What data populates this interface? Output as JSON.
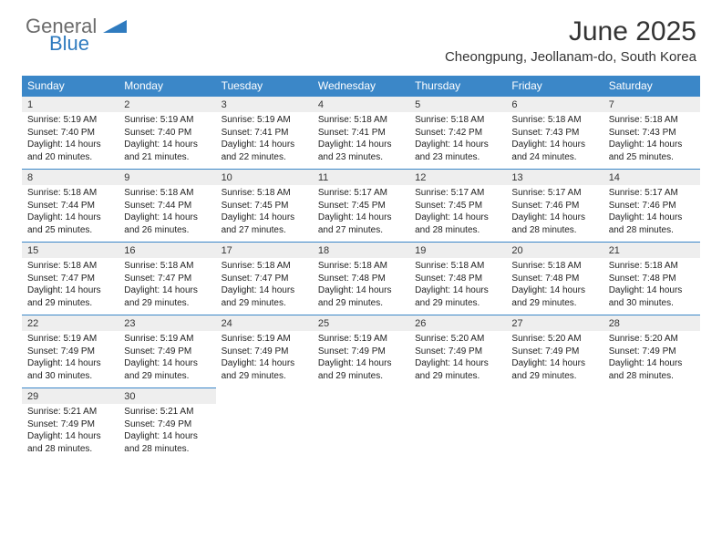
{
  "brand": {
    "word1": "General",
    "word2": "Blue"
  },
  "title": "June 2025",
  "location": "Cheongpung, Jeollanam-do, South Korea",
  "colors": {
    "headerBg": "#3b87c8",
    "headerText": "#ffffff",
    "dateRowBg": "#eeeeee",
    "borderColor": "#3b87c8",
    "bodyText": "#222222",
    "logoGray": "#6b6b6b",
    "logoBlue": "#2f7bbf"
  },
  "dayNames": [
    "Sunday",
    "Monday",
    "Tuesday",
    "Wednesday",
    "Thursday",
    "Friday",
    "Saturday"
  ],
  "weeks": [
    [
      {
        "date": "1",
        "sunrise": "Sunrise: 5:19 AM",
        "sunset": "Sunset: 7:40 PM",
        "daylight": "Daylight: 14 hours and 20 minutes."
      },
      {
        "date": "2",
        "sunrise": "Sunrise: 5:19 AM",
        "sunset": "Sunset: 7:40 PM",
        "daylight": "Daylight: 14 hours and 21 minutes."
      },
      {
        "date": "3",
        "sunrise": "Sunrise: 5:19 AM",
        "sunset": "Sunset: 7:41 PM",
        "daylight": "Daylight: 14 hours and 22 minutes."
      },
      {
        "date": "4",
        "sunrise": "Sunrise: 5:18 AM",
        "sunset": "Sunset: 7:41 PM",
        "daylight": "Daylight: 14 hours and 23 minutes."
      },
      {
        "date": "5",
        "sunrise": "Sunrise: 5:18 AM",
        "sunset": "Sunset: 7:42 PM",
        "daylight": "Daylight: 14 hours and 23 minutes."
      },
      {
        "date": "6",
        "sunrise": "Sunrise: 5:18 AM",
        "sunset": "Sunset: 7:43 PM",
        "daylight": "Daylight: 14 hours and 24 minutes."
      },
      {
        "date": "7",
        "sunrise": "Sunrise: 5:18 AM",
        "sunset": "Sunset: 7:43 PM",
        "daylight": "Daylight: 14 hours and 25 minutes."
      }
    ],
    [
      {
        "date": "8",
        "sunrise": "Sunrise: 5:18 AM",
        "sunset": "Sunset: 7:44 PM",
        "daylight": "Daylight: 14 hours and 25 minutes."
      },
      {
        "date": "9",
        "sunrise": "Sunrise: 5:18 AM",
        "sunset": "Sunset: 7:44 PM",
        "daylight": "Daylight: 14 hours and 26 minutes."
      },
      {
        "date": "10",
        "sunrise": "Sunrise: 5:18 AM",
        "sunset": "Sunset: 7:45 PM",
        "daylight": "Daylight: 14 hours and 27 minutes."
      },
      {
        "date": "11",
        "sunrise": "Sunrise: 5:17 AM",
        "sunset": "Sunset: 7:45 PM",
        "daylight": "Daylight: 14 hours and 27 minutes."
      },
      {
        "date": "12",
        "sunrise": "Sunrise: 5:17 AM",
        "sunset": "Sunset: 7:45 PM",
        "daylight": "Daylight: 14 hours and 28 minutes."
      },
      {
        "date": "13",
        "sunrise": "Sunrise: 5:17 AM",
        "sunset": "Sunset: 7:46 PM",
        "daylight": "Daylight: 14 hours and 28 minutes."
      },
      {
        "date": "14",
        "sunrise": "Sunrise: 5:17 AM",
        "sunset": "Sunset: 7:46 PM",
        "daylight": "Daylight: 14 hours and 28 minutes."
      }
    ],
    [
      {
        "date": "15",
        "sunrise": "Sunrise: 5:18 AM",
        "sunset": "Sunset: 7:47 PM",
        "daylight": "Daylight: 14 hours and 29 minutes."
      },
      {
        "date": "16",
        "sunrise": "Sunrise: 5:18 AM",
        "sunset": "Sunset: 7:47 PM",
        "daylight": "Daylight: 14 hours and 29 minutes."
      },
      {
        "date": "17",
        "sunrise": "Sunrise: 5:18 AM",
        "sunset": "Sunset: 7:47 PM",
        "daylight": "Daylight: 14 hours and 29 minutes."
      },
      {
        "date": "18",
        "sunrise": "Sunrise: 5:18 AM",
        "sunset": "Sunset: 7:48 PM",
        "daylight": "Daylight: 14 hours and 29 minutes."
      },
      {
        "date": "19",
        "sunrise": "Sunrise: 5:18 AM",
        "sunset": "Sunset: 7:48 PM",
        "daylight": "Daylight: 14 hours and 29 minutes."
      },
      {
        "date": "20",
        "sunrise": "Sunrise: 5:18 AM",
        "sunset": "Sunset: 7:48 PM",
        "daylight": "Daylight: 14 hours and 29 minutes."
      },
      {
        "date": "21",
        "sunrise": "Sunrise: 5:18 AM",
        "sunset": "Sunset: 7:48 PM",
        "daylight": "Daylight: 14 hours and 30 minutes."
      }
    ],
    [
      {
        "date": "22",
        "sunrise": "Sunrise: 5:19 AM",
        "sunset": "Sunset: 7:49 PM",
        "daylight": "Daylight: 14 hours and 30 minutes."
      },
      {
        "date": "23",
        "sunrise": "Sunrise: 5:19 AM",
        "sunset": "Sunset: 7:49 PM",
        "daylight": "Daylight: 14 hours and 29 minutes."
      },
      {
        "date": "24",
        "sunrise": "Sunrise: 5:19 AM",
        "sunset": "Sunset: 7:49 PM",
        "daylight": "Daylight: 14 hours and 29 minutes."
      },
      {
        "date": "25",
        "sunrise": "Sunrise: 5:19 AM",
        "sunset": "Sunset: 7:49 PM",
        "daylight": "Daylight: 14 hours and 29 minutes."
      },
      {
        "date": "26",
        "sunrise": "Sunrise: 5:20 AM",
        "sunset": "Sunset: 7:49 PM",
        "daylight": "Daylight: 14 hours and 29 minutes."
      },
      {
        "date": "27",
        "sunrise": "Sunrise: 5:20 AM",
        "sunset": "Sunset: 7:49 PM",
        "daylight": "Daylight: 14 hours and 29 minutes."
      },
      {
        "date": "28",
        "sunrise": "Sunrise: 5:20 AM",
        "sunset": "Sunset: 7:49 PM",
        "daylight": "Daylight: 14 hours and 28 minutes."
      }
    ],
    [
      {
        "date": "29",
        "sunrise": "Sunrise: 5:21 AM",
        "sunset": "Sunset: 7:49 PM",
        "daylight": "Daylight: 14 hours and 28 minutes."
      },
      {
        "date": "30",
        "sunrise": "Sunrise: 5:21 AM",
        "sunset": "Sunset: 7:49 PM",
        "daylight": "Daylight: 14 hours and 28 minutes."
      },
      null,
      null,
      null,
      null,
      null
    ]
  ]
}
